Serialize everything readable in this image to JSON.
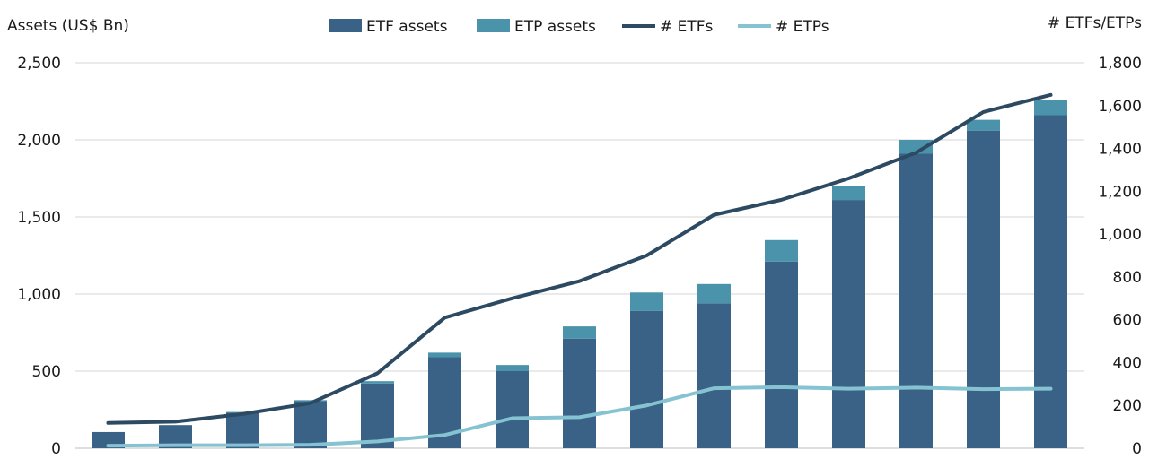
{
  "chart_data": {
    "type": "bar",
    "title": "",
    "left_axis_label": "Assets (US$ Bn)",
    "right_axis_label": "# ETFs/ETPs",
    "left_ylim": [
      0,
      2500
    ],
    "right_ylim": [
      0,
      1800
    ],
    "left_ticks": [
      "0",
      "500",
      "1,000",
      "1,500",
      "2,000",
      "2,500"
    ],
    "right_ticks": [
      "0",
      "200",
      "400",
      "600",
      "800",
      "1,000",
      "1,200",
      "1,400",
      "1,600",
      "1,800"
    ],
    "categories": [
      "",
      "",
      "",
      "",
      "",
      "",
      "",
      "",
      "",
      "",
      "",
      "",
      "",
      "",
      ""
    ],
    "grid": true,
    "legend_position": "top",
    "series": [
      {
        "name": "ETF assets",
        "kind": "bar",
        "axis": "left",
        "color": "#3a6186",
        "values": [
          105,
          150,
          230,
          305,
          420,
          590,
          500,
          710,
          890,
          940,
          1210,
          1610,
          1910,
          2060,
          2160
        ]
      },
      {
        "name": "ETP assets",
        "kind": "bar",
        "axis": "left",
        "color": "#4a93ab",
        "values": [
          0,
          0,
          5,
          7,
          15,
          30,
          40,
          80,
          120,
          125,
          140,
          90,
          90,
          70,
          100
        ]
      },
      {
        "name": "# ETFs",
        "kind": "line",
        "axis": "right",
        "color": "#2d4a63",
        "values": [
          118,
          124,
          160,
          210,
          350,
          610,
          700,
          780,
          900,
          1090,
          1160,
          1260,
          1380,
          1570,
          1650
        ]
      },
      {
        "name": "# ETPs",
        "kind": "line",
        "axis": "right",
        "color": "#85c3d2",
        "values": [
          12,
          14,
          14,
          16,
          32,
          62,
          140,
          145,
          200,
          280,
          285,
          278,
          283,
          276,
          278
        ]
      }
    ]
  }
}
